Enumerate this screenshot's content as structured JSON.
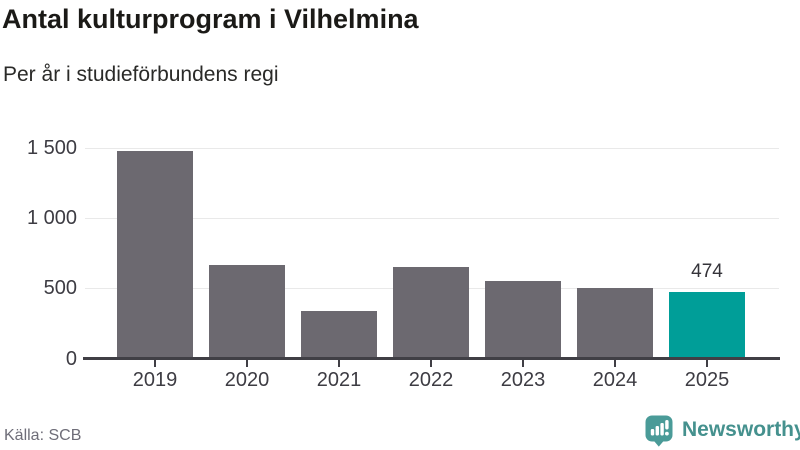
{
  "chart_data": {
    "type": "bar",
    "title": "Antal kulturprogram i Vilhelmina",
    "subtitle": "Per år i studieförbundens regi",
    "categories": [
      "2019",
      "2020",
      "2021",
      "2022",
      "2023",
      "2024",
      "2025"
    ],
    "values": [
      1480,
      665,
      340,
      650,
      555,
      505,
      474
    ],
    "xlabel": "",
    "ylabel": "",
    "ylim": [
      0,
      1500
    ],
    "yticks": [
      0,
      500,
      1000,
      1500
    ],
    "ytick_labels": [
      "0",
      "500",
      "1 000",
      "1 500"
    ],
    "grid": true,
    "legend_position": "none",
    "highlight": {
      "index": 6,
      "category": "2025",
      "value_label": "474"
    }
  },
  "footer": {
    "source": "Källa: SCB",
    "brand": "Newsworthy"
  },
  "colors": {
    "bar": "#6c6970",
    "highlight": "#009e98",
    "axis": "#403f45",
    "grid": "#e9e9e9",
    "tick_label": "#3d3c43",
    "value_label": "#35343a",
    "title": "#1b1a17",
    "subtitle": "#2a2a28",
    "source": "#6e6d78",
    "brand": "#45918e",
    "brand_icon": "#4a9b98"
  }
}
